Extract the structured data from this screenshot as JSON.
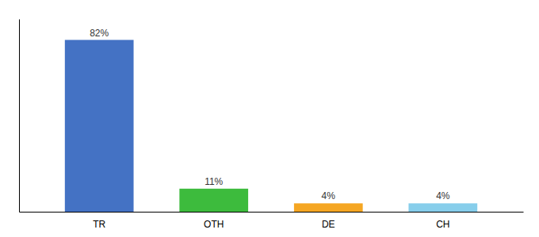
{
  "chart_data": {
    "type": "bar",
    "categories": [
      "TR",
      "OTH",
      "DE",
      "CH"
    ],
    "values": [
      82,
      11,
      4,
      4
    ],
    "value_labels": [
      "82%",
      "11%",
      "4%",
      "4%"
    ],
    "colors": [
      "#4472c4",
      "#3dbb3d",
      "#f5a623",
      "#87ceeb"
    ],
    "ylim": [
      0,
      92
    ],
    "data_labels": true,
    "tick_labels": "x"
  }
}
